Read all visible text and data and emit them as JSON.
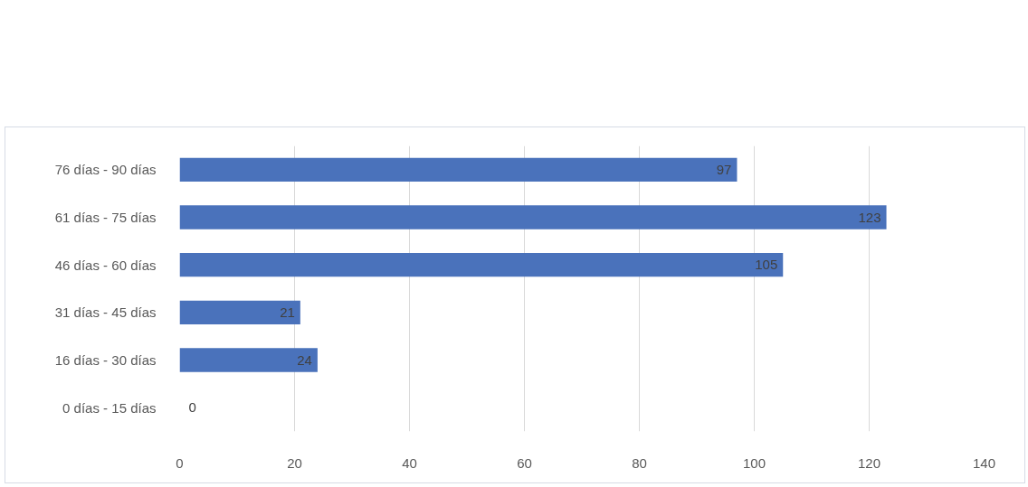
{
  "chart_data": {
    "type": "bar",
    "orientation": "horizontal",
    "categories": [
      "76 días - 90 días",
      "61 días - 75 días",
      "46 días - 60 días",
      "31 días - 45 días",
      "16 días - 30 días",
      "0 días - 15 días"
    ],
    "values": [
      97,
      123,
      105,
      21,
      24,
      0
    ],
    "color": "#4a72bb",
    "xlim": [
      0,
      140
    ],
    "xticks": [
      0,
      20,
      40,
      60,
      80,
      100,
      120,
      140
    ],
    "grid": "x",
    "data_labels": true
  }
}
